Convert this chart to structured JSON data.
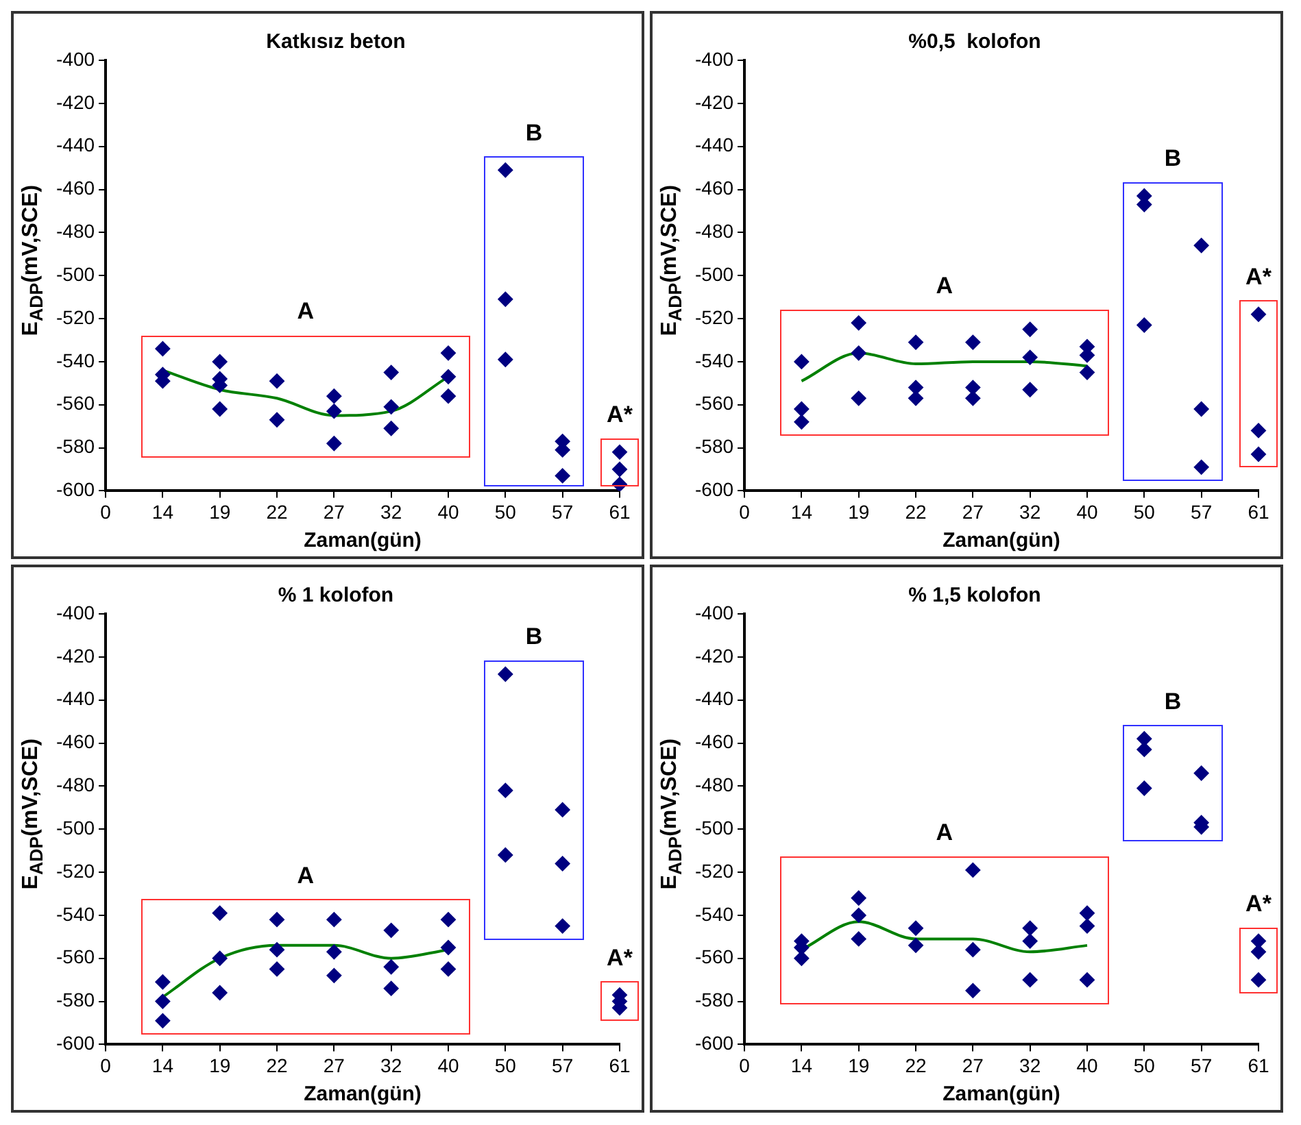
{
  "chart_data": [
    {
      "type": "scatter",
      "title": "Katkısız beton",
      "xlabel": "Zaman(gün)",
      "ylabel": "E$_{ADP}$(mV,SCE)",
      "categories": [
        "0",
        "14",
        "19",
        "22",
        "27",
        "32",
        "40",
        "50",
        "57",
        "61"
      ],
      "ylim": [
        -600,
        -400
      ],
      "yticks": [
        -600,
        -580,
        -560,
        -540,
        -520,
        -500,
        -480,
        -460,
        -440,
        -420,
        -400
      ],
      "grid": false,
      "legend": false,
      "marker": "diamond",
      "series": [
        {
          "name": "A",
          "color": "#000080",
          "x": [
            "14",
            "14",
            "14",
            "19",
            "19",
            "19",
            "19",
            "22",
            "22",
            "27",
            "27",
            "27",
            "32",
            "32",
            "32",
            "40",
            "40",
            "40"
          ],
          "values": [
            -534,
            -546,
            -549,
            -540,
            -548,
            -551,
            -562,
            -549,
            -567,
            -556,
            -563,
            -578,
            -545,
            -561,
            -571,
            -536,
            -547,
            -556
          ]
        },
        {
          "name": "B",
          "color": "#000080",
          "x": [
            "50",
            "50",
            "50",
            "57",
            "57",
            "57"
          ],
          "values": [
            -451,
            -511,
            -539,
            -577,
            -581,
            -593
          ]
        },
        {
          "name": "A*",
          "color": "#000080",
          "x": [
            "61",
            "61",
            "61"
          ],
          "values": [
            -582,
            -590,
            -597
          ]
        },
        {
          "type": "line",
          "marker": "none",
          "color": "#008000",
          "x": [
            "14",
            "19",
            "22",
            "27",
            "32",
            "40"
          ],
          "values": [
            -544,
            -553,
            -557,
            -565,
            -563,
            -547
          ]
        }
      ]
    },
    {
      "type": "scatter",
      "title": "%0,5  kolofon",
      "xlabel": "Zaman(gün)",
      "ylabel": "E$_{ADP}$(mV,SCE)",
      "categories": [
        "0",
        "14",
        "19",
        "22",
        "27",
        "32",
        "40",
        "50",
        "57",
        "61"
      ],
      "ylim": [
        -600,
        -400
      ],
      "yticks": [
        -600,
        -580,
        -560,
        -540,
        -520,
        -500,
        -480,
        -460,
        -440,
        -420,
        -400
      ],
      "grid": false,
      "legend": false,
      "marker": "diamond",
      "series": [
        {
          "name": "A",
          "color": "#000080",
          "x": [
            "14",
            "14",
            "14",
            "19",
            "19",
            "19",
            "22",
            "22",
            "22",
            "27",
            "27",
            "27",
            "32",
            "32",
            "32",
            "40",
            "40",
            "40"
          ],
          "values": [
            -540,
            -562,
            -568,
            -522,
            -536,
            -557,
            -531,
            -552,
            -557,
            -531,
            -552,
            -557,
            -525,
            -538,
            -553,
            -533,
            -537,
            -545
          ]
        },
        {
          "name": "B",
          "color": "#000080",
          "x": [
            "50",
            "50",
            "50",
            "57",
            "57",
            "57"
          ],
          "values": [
            -463,
            -467,
            -523,
            -486,
            -562,
            -589
          ]
        },
        {
          "name": "A*",
          "color": "#000080",
          "x": [
            "61",
            "61",
            "61"
          ],
          "values": [
            -518,
            -572,
            -583
          ]
        },
        {
          "type": "line",
          "marker": "none",
          "color": "#008000",
          "x": [
            "14",
            "19",
            "22",
            "27",
            "32",
            "40"
          ],
          "values": [
            -549,
            -536,
            -541,
            -540,
            -540,
            -542
          ]
        }
      ]
    },
    {
      "type": "scatter",
      "title": "% 1 kolofon",
      "xlabel": "Zaman(gün)",
      "ylabel": "E$_{ADP}$(mV,SCE)",
      "categories": [
        "0",
        "14",
        "19",
        "22",
        "27",
        "32",
        "40",
        "50",
        "57",
        "61"
      ],
      "ylim": [
        -600,
        -400
      ],
      "yticks": [
        -600,
        -580,
        -560,
        -540,
        -520,
        -500,
        -480,
        -460,
        -440,
        -420,
        -400
      ],
      "grid": false,
      "legend": false,
      "marker": "diamond",
      "series": [
        {
          "name": "A",
          "color": "#000080",
          "x": [
            "14",
            "14",
            "14",
            "19",
            "19",
            "19",
            "22",
            "22",
            "22",
            "27",
            "27",
            "27",
            "32",
            "32",
            "32",
            "40",
            "40",
            "40"
          ],
          "values": [
            -571,
            -580,
            -589,
            -539,
            -560,
            -576,
            -542,
            -556,
            -565,
            -542,
            -557,
            -568,
            -547,
            -564,
            -574,
            -542,
            -555,
            -565
          ]
        },
        {
          "name": "B",
          "color": "#000080",
          "x": [
            "50",
            "50",
            "50",
            "57",
            "57",
            "57"
          ],
          "values": [
            -428,
            -482,
            -512,
            -491,
            -516,
            -545
          ]
        },
        {
          "name": "A*",
          "color": "#000080",
          "x": [
            "61",
            "61",
            "61"
          ],
          "values": [
            -577,
            -580,
            -583
          ]
        },
        {
          "type": "line",
          "marker": "none",
          "color": "#008000",
          "x": [
            "14",
            "19",
            "22",
            "27",
            "32",
            "40"
          ],
          "values": [
            -578,
            -560,
            -554,
            -554,
            -560,
            -556
          ]
        }
      ]
    },
    {
      "type": "scatter",
      "title": "% 1,5 kolofon",
      "xlabel": "Zaman(gün)",
      "ylabel": "E$_{ADP}$(mV,SCE)",
      "categories": [
        "0",
        "14",
        "19",
        "22",
        "27",
        "32",
        "40",
        "50",
        "57",
        "61"
      ],
      "ylim": [
        -600,
        -400
      ],
      "yticks": [
        -600,
        -580,
        -560,
        -540,
        -520,
        -500,
        -480,
        -460,
        -440,
        -420,
        -400
      ],
      "grid": false,
      "legend": false,
      "marker": "diamond",
      "series": [
        {
          "name": "A",
          "color": "#000080",
          "x": [
            "14",
            "14",
            "14",
            "19",
            "19",
            "19",
            "22",
            "22",
            "27",
            "27",
            "27",
            "32",
            "32",
            "32",
            "40",
            "40",
            "40"
          ],
          "values": [
            -552,
            -555,
            -560,
            -532,
            -540,
            -551,
            -546,
            -554,
            -519,
            -556,
            -575,
            -546,
            -552,
            -570,
            -539,
            -545,
            -570
          ]
        },
        {
          "name": "B",
          "color": "#000080",
          "x": [
            "50",
            "50",
            "50",
            "57",
            "57",
            "57"
          ],
          "values": [
            -458,
            -463,
            -481,
            -474,
            -497,
            -499
          ]
        },
        {
          "name": "A*",
          "color": "#000080",
          "x": [
            "61",
            "61",
            "61"
          ],
          "values": [
            -552,
            -557,
            -570
          ]
        },
        {
          "type": "line",
          "marker": "none",
          "color": "#008000",
          "x": [
            "14",
            "19",
            "22",
            "27",
            "32",
            "40"
          ],
          "values": [
            -556,
            -543,
            -551,
            -551,
            -557,
            -554
          ]
        }
      ]
    }
  ]
}
